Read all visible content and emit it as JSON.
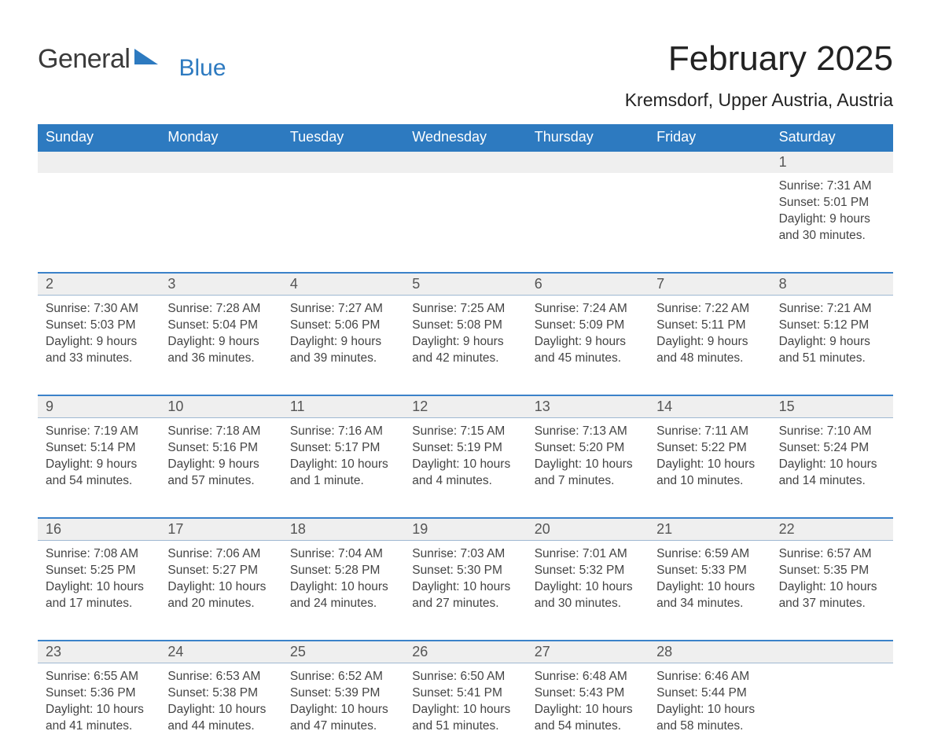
{
  "brand": {
    "part1": "General",
    "part2": "Blue"
  },
  "title": "February 2025",
  "location": "Kremsdorf, Upper Austria, Austria",
  "colors": {
    "brand_blue": "#2d7ac0",
    "row_band": "#efefef",
    "border_blue": "#3b82c9",
    "text": "#333333"
  },
  "days_of_week": [
    "Sunday",
    "Monday",
    "Tuesday",
    "Wednesday",
    "Thursday",
    "Friday",
    "Saturday"
  ],
  "weeks": [
    [
      {
        "n": "",
        "sunrise": "",
        "sunset": "",
        "daylight": ""
      },
      {
        "n": "",
        "sunrise": "",
        "sunset": "",
        "daylight": ""
      },
      {
        "n": "",
        "sunrise": "",
        "sunset": "",
        "daylight": ""
      },
      {
        "n": "",
        "sunrise": "",
        "sunset": "",
        "daylight": ""
      },
      {
        "n": "",
        "sunrise": "",
        "sunset": "",
        "daylight": ""
      },
      {
        "n": "",
        "sunrise": "",
        "sunset": "",
        "daylight": ""
      },
      {
        "n": "1",
        "sunrise": "Sunrise: 7:31 AM",
        "sunset": "Sunset: 5:01 PM",
        "daylight": "Daylight: 9 hours and 30 minutes."
      }
    ],
    [
      {
        "n": "2",
        "sunrise": "Sunrise: 7:30 AM",
        "sunset": "Sunset: 5:03 PM",
        "daylight": "Daylight: 9 hours and 33 minutes."
      },
      {
        "n": "3",
        "sunrise": "Sunrise: 7:28 AM",
        "sunset": "Sunset: 5:04 PM",
        "daylight": "Daylight: 9 hours and 36 minutes."
      },
      {
        "n": "4",
        "sunrise": "Sunrise: 7:27 AM",
        "sunset": "Sunset: 5:06 PM",
        "daylight": "Daylight: 9 hours and 39 minutes."
      },
      {
        "n": "5",
        "sunrise": "Sunrise: 7:25 AM",
        "sunset": "Sunset: 5:08 PM",
        "daylight": "Daylight: 9 hours and 42 minutes."
      },
      {
        "n": "6",
        "sunrise": "Sunrise: 7:24 AM",
        "sunset": "Sunset: 5:09 PM",
        "daylight": "Daylight: 9 hours and 45 minutes."
      },
      {
        "n": "7",
        "sunrise": "Sunrise: 7:22 AM",
        "sunset": "Sunset: 5:11 PM",
        "daylight": "Daylight: 9 hours and 48 minutes."
      },
      {
        "n": "8",
        "sunrise": "Sunrise: 7:21 AM",
        "sunset": "Sunset: 5:12 PM",
        "daylight": "Daylight: 9 hours and 51 minutes."
      }
    ],
    [
      {
        "n": "9",
        "sunrise": "Sunrise: 7:19 AM",
        "sunset": "Sunset: 5:14 PM",
        "daylight": "Daylight: 9 hours and 54 minutes."
      },
      {
        "n": "10",
        "sunrise": "Sunrise: 7:18 AM",
        "sunset": "Sunset: 5:16 PM",
        "daylight": "Daylight: 9 hours and 57 minutes."
      },
      {
        "n": "11",
        "sunrise": "Sunrise: 7:16 AM",
        "sunset": "Sunset: 5:17 PM",
        "daylight": "Daylight: 10 hours and 1 minute."
      },
      {
        "n": "12",
        "sunrise": "Sunrise: 7:15 AM",
        "sunset": "Sunset: 5:19 PM",
        "daylight": "Daylight: 10 hours and 4 minutes."
      },
      {
        "n": "13",
        "sunrise": "Sunrise: 7:13 AM",
        "sunset": "Sunset: 5:20 PM",
        "daylight": "Daylight: 10 hours and 7 minutes."
      },
      {
        "n": "14",
        "sunrise": "Sunrise: 7:11 AM",
        "sunset": "Sunset: 5:22 PM",
        "daylight": "Daylight: 10 hours and 10 minutes."
      },
      {
        "n": "15",
        "sunrise": "Sunrise: 7:10 AM",
        "sunset": "Sunset: 5:24 PM",
        "daylight": "Daylight: 10 hours and 14 minutes."
      }
    ],
    [
      {
        "n": "16",
        "sunrise": "Sunrise: 7:08 AM",
        "sunset": "Sunset: 5:25 PM",
        "daylight": "Daylight: 10 hours and 17 minutes."
      },
      {
        "n": "17",
        "sunrise": "Sunrise: 7:06 AM",
        "sunset": "Sunset: 5:27 PM",
        "daylight": "Daylight: 10 hours and 20 minutes."
      },
      {
        "n": "18",
        "sunrise": "Sunrise: 7:04 AM",
        "sunset": "Sunset: 5:28 PM",
        "daylight": "Daylight: 10 hours and 24 minutes."
      },
      {
        "n": "19",
        "sunrise": "Sunrise: 7:03 AM",
        "sunset": "Sunset: 5:30 PM",
        "daylight": "Daylight: 10 hours and 27 minutes."
      },
      {
        "n": "20",
        "sunrise": "Sunrise: 7:01 AM",
        "sunset": "Sunset: 5:32 PM",
        "daylight": "Daylight: 10 hours and 30 minutes."
      },
      {
        "n": "21",
        "sunrise": "Sunrise: 6:59 AM",
        "sunset": "Sunset: 5:33 PM",
        "daylight": "Daylight: 10 hours and 34 minutes."
      },
      {
        "n": "22",
        "sunrise": "Sunrise: 6:57 AM",
        "sunset": "Sunset: 5:35 PM",
        "daylight": "Daylight: 10 hours and 37 minutes."
      }
    ],
    [
      {
        "n": "23",
        "sunrise": "Sunrise: 6:55 AM",
        "sunset": "Sunset: 5:36 PM",
        "daylight": "Daylight: 10 hours and 41 minutes."
      },
      {
        "n": "24",
        "sunrise": "Sunrise: 6:53 AM",
        "sunset": "Sunset: 5:38 PM",
        "daylight": "Daylight: 10 hours and 44 minutes."
      },
      {
        "n": "25",
        "sunrise": "Sunrise: 6:52 AM",
        "sunset": "Sunset: 5:39 PM",
        "daylight": "Daylight: 10 hours and 47 minutes."
      },
      {
        "n": "26",
        "sunrise": "Sunrise: 6:50 AM",
        "sunset": "Sunset: 5:41 PM",
        "daylight": "Daylight: 10 hours and 51 minutes."
      },
      {
        "n": "27",
        "sunrise": "Sunrise: 6:48 AM",
        "sunset": "Sunset: 5:43 PM",
        "daylight": "Daylight: 10 hours and 54 minutes."
      },
      {
        "n": "28",
        "sunrise": "Sunrise: 6:46 AM",
        "sunset": "Sunset: 5:44 PM",
        "daylight": "Daylight: 10 hours and 58 minutes."
      },
      {
        "n": "",
        "sunrise": "",
        "sunset": "",
        "daylight": ""
      }
    ]
  ]
}
